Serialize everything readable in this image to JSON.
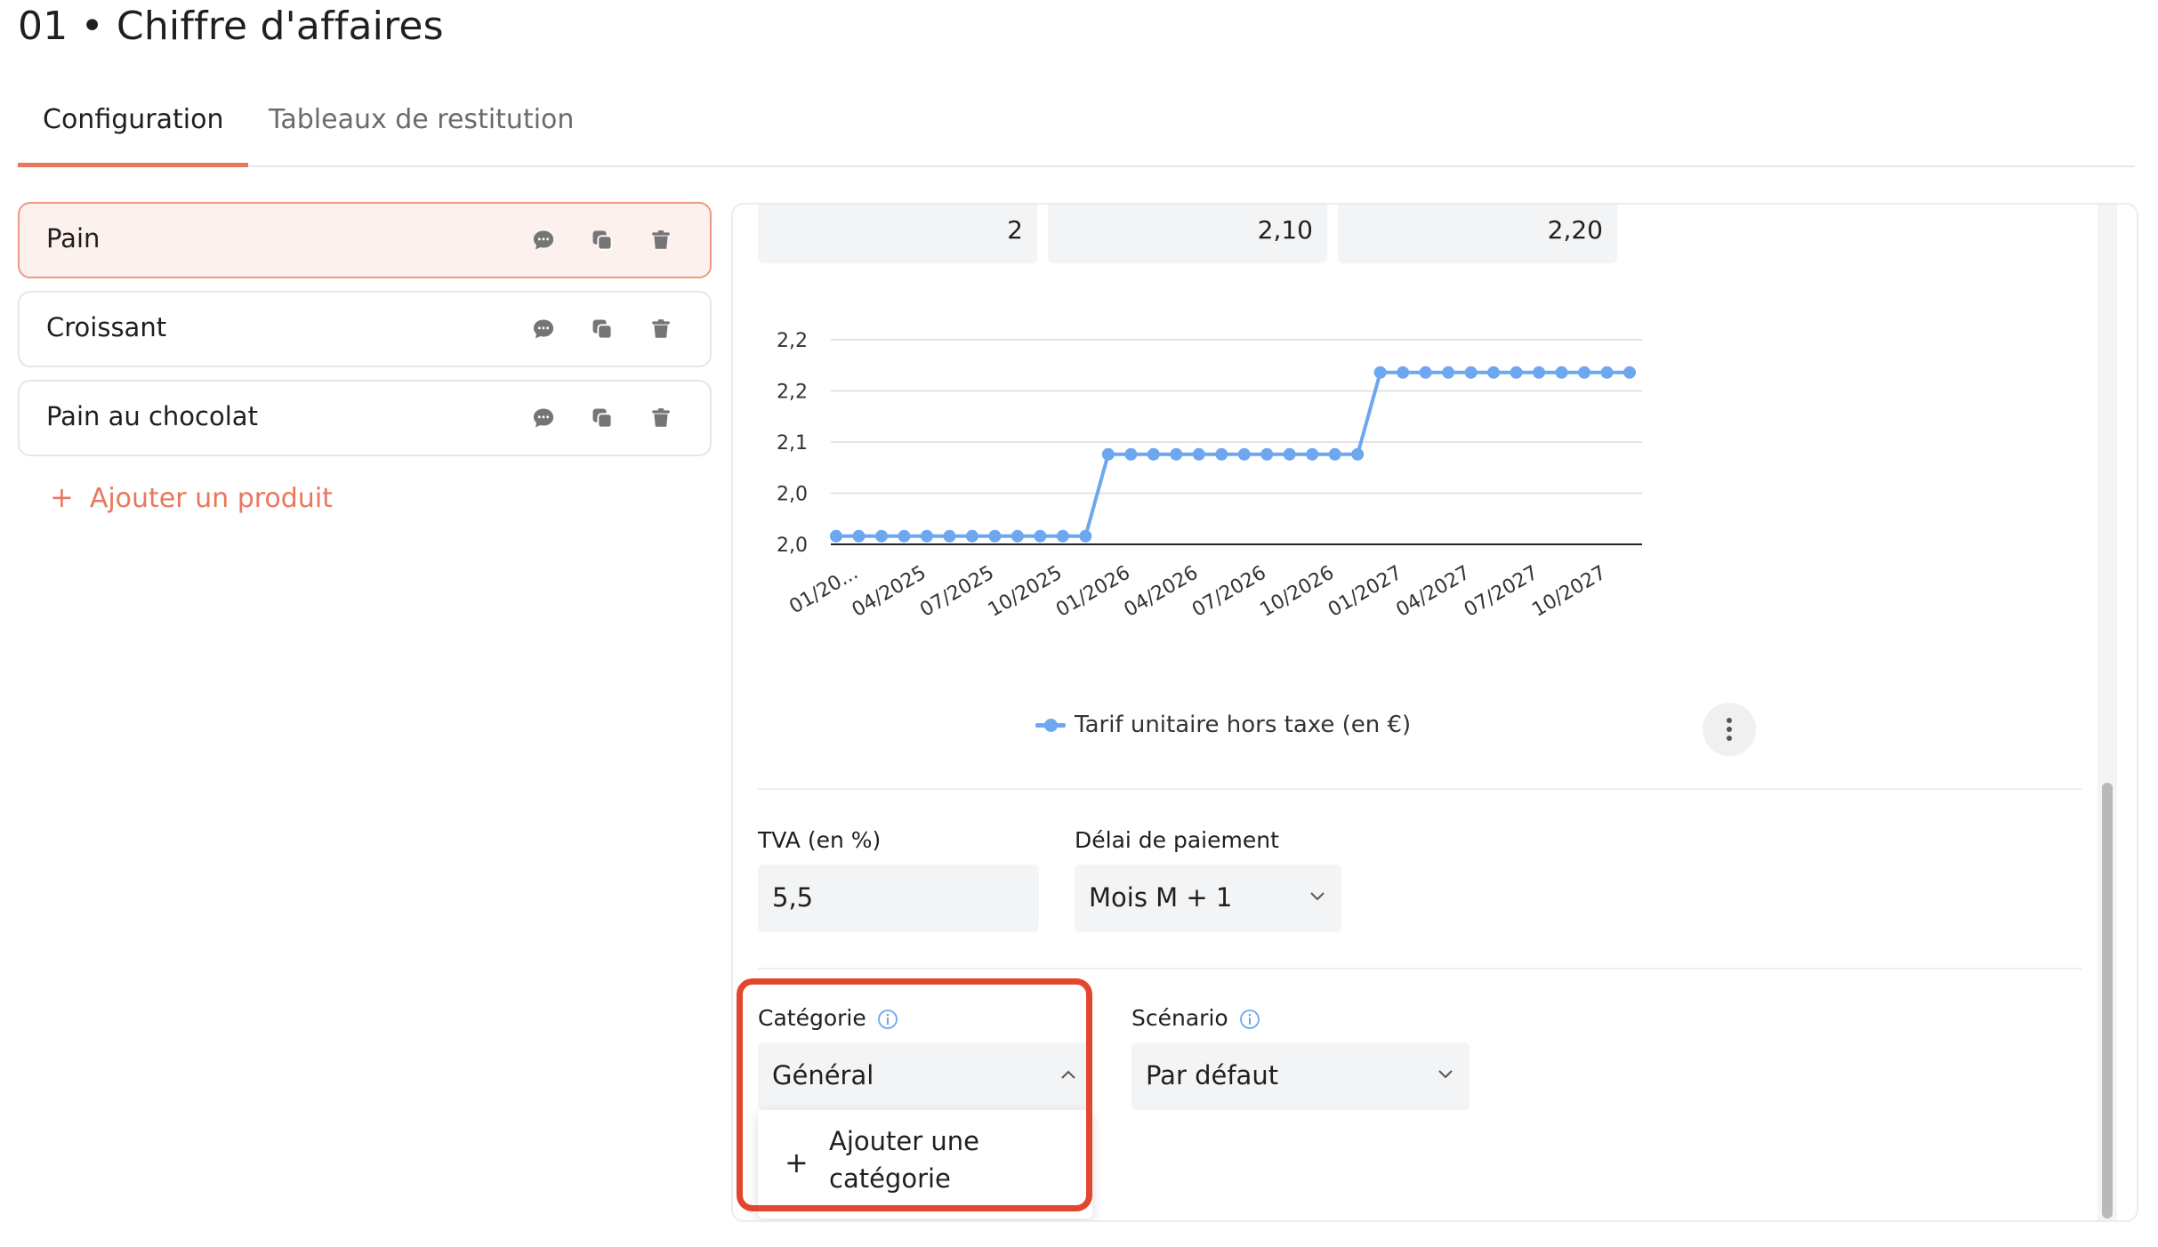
{
  "page": {
    "title": "01 • Chiffre d'affaires"
  },
  "tabs": [
    {
      "label": "Configuration",
      "active": true
    },
    {
      "label": "Tableaux de restitution",
      "active": false
    }
  ],
  "products": [
    {
      "name": "Pain",
      "active": true
    },
    {
      "name": "Croissant",
      "active": false
    },
    {
      "name": "Pain au chocolat",
      "active": false
    }
  ],
  "product_icons": [
    "comment-icon",
    "duplicate-icon",
    "trash-icon"
  ],
  "add_product_label": "Ajouter un produit",
  "value_cells": [
    "2",
    "2,10",
    "2,20"
  ],
  "chart_data": {
    "type": "line",
    "title": "",
    "xlabel": "",
    "ylabel": "",
    "x_tick_labels": [
      "01/20...",
      "04/2025",
      "07/2025",
      "10/2025",
      "01/2026",
      "04/2026",
      "07/2026",
      "10/2026",
      "01/2027",
      "04/2027",
      "07/2027",
      "10/2027"
    ],
    "y_tick_labels": [
      "2,2",
      "2,2",
      "2,1",
      "2,0",
      "2,0"
    ],
    "series": [
      {
        "name": "Tarif unitaire hors taxe (en €)",
        "color": "#6da7ef",
        "values": [
          2,
          2,
          2,
          2,
          2,
          2,
          2,
          2,
          2,
          2,
          2,
          2,
          2.1,
          2.1,
          2.1,
          2.1,
          2.1,
          2.1,
          2.1,
          2.1,
          2.1,
          2.1,
          2.1,
          2.1,
          2.2,
          2.2,
          2.2,
          2.2,
          2.2,
          2.2,
          2.2,
          2.2,
          2.2,
          2.2,
          2.2,
          2.2
        ]
      }
    ],
    "ylim": [
      1.99,
      2.24
    ],
    "grid": true,
    "legend": "bottom"
  },
  "fields": {
    "tva": {
      "label": "TVA (en %)",
      "value": "5,5"
    },
    "delai": {
      "label": "Délai de paiement",
      "value": "Mois M + 1"
    },
    "categorie": {
      "label": "Catégorie",
      "value": "Général",
      "menu_item": "Ajouter une catégorie"
    },
    "scenario": {
      "label": "Scénario",
      "value": "Par défaut"
    }
  },
  "colors": {
    "accent": "#e8785c",
    "highlight": "#e3462e",
    "series": "#6da7ef"
  }
}
